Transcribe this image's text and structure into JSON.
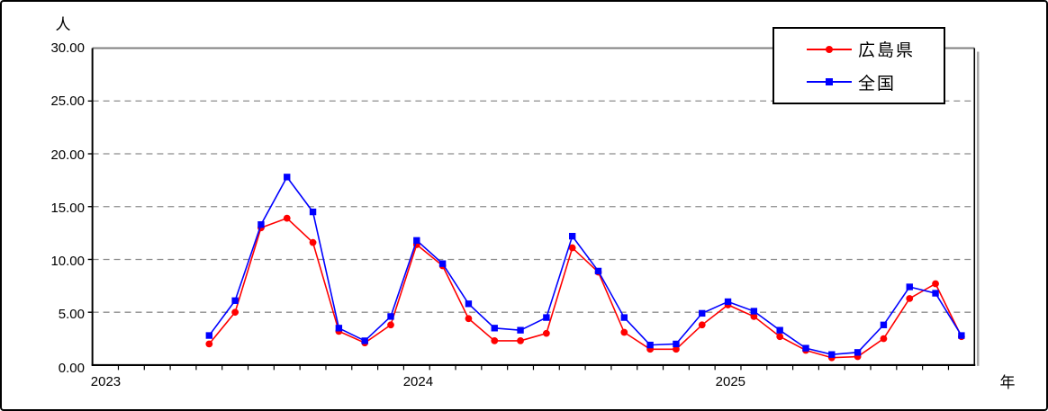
{
  "window": {
    "background": "#ffffff",
    "border_color": "#000000"
  },
  "colors": {
    "hiroshima_red": "#ff0000",
    "national_blue": "#0000ff",
    "gridline_gray": "#8c8c8c",
    "frame_shadow_gray": "#a6a6a6",
    "axis_black": "#000000"
  },
  "chart_data": {
    "type": "line",
    "title": "",
    "y_unit_label": "人",
    "x_unit_label": "年",
    "ylim": [
      0,
      30
    ],
    "y_tick_step": 5,
    "y_ticks": [
      {
        "label": "30.00",
        "value": 30
      },
      {
        "label": "25.00",
        "value": 25
      },
      {
        "label": "20.00",
        "value": 20
      },
      {
        "label": "15.00",
        "value": 15
      },
      {
        "label": "10.00",
        "value": 10
      },
      {
        "label": "5.00",
        "value": 5
      },
      {
        "label": "0.00",
        "value": 0
      }
    ],
    "grid": "dashed-horizontal",
    "legend_position": "top-right",
    "x_frequency": "monthly",
    "x_start": "2023-05",
    "x_end": "2025-10",
    "x_axis_total_months": 34,
    "x_axis_start_offset_months": 4,
    "x_years": [
      {
        "label": "2023",
        "month_index": 0
      },
      {
        "label": "2024",
        "month_index": 12
      },
      {
        "label": "2025",
        "month_index": 24
      }
    ],
    "series": [
      {
        "name": "広島県",
        "color": "#ff0000",
        "marker": "circle",
        "values": [
          2.0,
          5.0,
          13.0,
          13.9,
          11.6,
          3.2,
          2.1,
          3.8,
          11.4,
          9.4,
          4.4,
          2.3,
          2.3,
          3.0,
          11.1,
          8.8,
          3.1,
          1.5,
          1.5,
          3.8,
          5.7,
          4.6,
          2.7,
          1.4,
          0.7,
          0.8,
          2.5,
          6.3,
          7.7,
          2.7
        ]
      },
      {
        "name": "全国",
        "color": "#0000ff",
        "marker": "square",
        "values": [
          2.8,
          6.1,
          13.3,
          17.8,
          14.5,
          3.5,
          2.3,
          4.6,
          11.8,
          9.6,
          5.8,
          3.5,
          3.3,
          4.5,
          12.2,
          8.9,
          4.5,
          1.9,
          2.0,
          4.9,
          6.0,
          5.1,
          3.3,
          1.6,
          1.0,
          1.2,
          3.8,
          7.4,
          6.8,
          2.8
        ]
      }
    ]
  }
}
